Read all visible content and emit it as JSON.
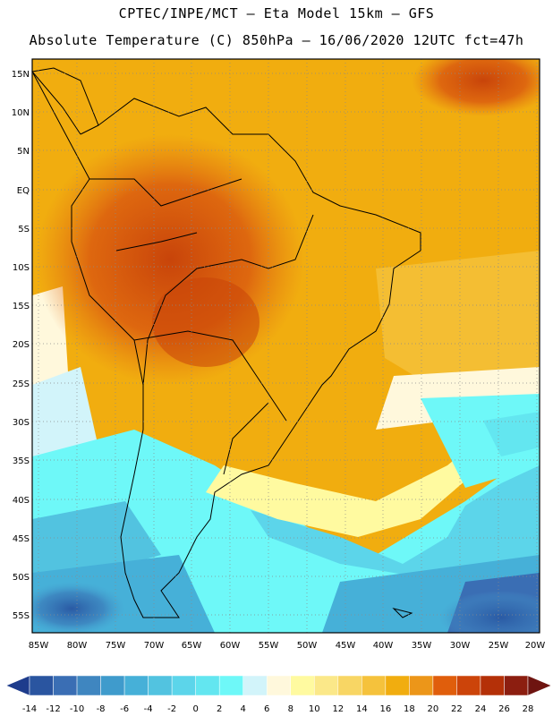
{
  "header": {
    "line1": "CPTEC/INPE/MCT –  Eta Model 15km – GFS",
    "line2": "Absolute Temperature (C) 850hPa – 16/06/2020 12UTC fct=47h"
  },
  "map": {
    "lat_labels": [
      "15N",
      "10N",
      "5N",
      "EQ",
      "5S",
      "10S",
      "15S",
      "20S",
      "25S",
      "30S",
      "35S",
      "40S",
      "45S",
      "50S",
      "55S"
    ],
    "lon_labels": [
      "85W",
      "80W",
      "75W",
      "70W",
      "65W",
      "60W",
      "55W",
      "50W",
      "45W",
      "40W",
      "35W",
      "30W",
      "25W",
      "20W"
    ]
  },
  "colorbar": {
    "labels": [
      "-14",
      "-12",
      "-10",
      "-8",
      "-6",
      "-4",
      "-2",
      "0",
      "2",
      "4",
      "6",
      "8",
      "10",
      "12",
      "14",
      "16",
      "18",
      "20",
      "22",
      "24",
      "26",
      "28"
    ],
    "colors": [
      "#1e3c8c",
      "#2a55a0",
      "#3a6eb4",
      "#3f86c0",
      "#3f9bcc",
      "#46b0d8",
      "#52c3e0",
      "#5cd5ea",
      "#63e6f0",
      "#6ef8f8",
      "#d2f4fa",
      "#fff8dc",
      "#fffaa0",
      "#fbe889",
      "#f8d664",
      "#f5c23c",
      "#f1ad0f",
      "#ec9619",
      "#e05e0c",
      "#cc440a",
      "#b43008",
      "#8c1e10",
      "#6e1410"
    ]
  }
}
